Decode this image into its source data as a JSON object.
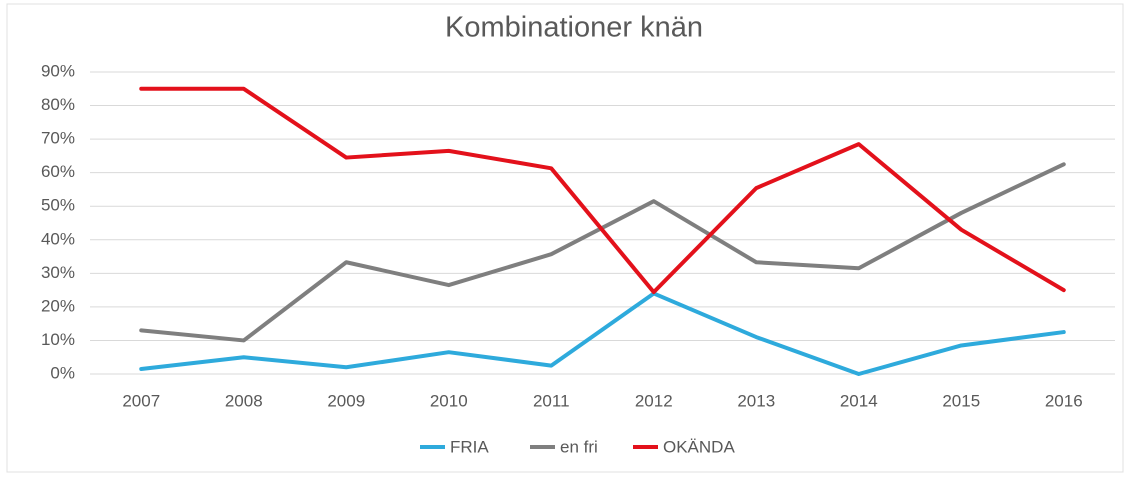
{
  "chart_data": {
    "type": "line",
    "title": "Kombinationer knän",
    "categories": [
      "2007",
      "2008",
      "2009",
      "2010",
      "2011",
      "2012",
      "2013",
      "2014",
      "2015",
      "2016"
    ],
    "series": [
      {
        "name": "FRIA",
        "color": "#2eaadc",
        "values": [
          1.5,
          5,
          2,
          6.5,
          2.5,
          24,
          11,
          0,
          8.5,
          12.5
        ]
      },
      {
        "name": "en fri",
        "color": "#7f7f7f",
        "values": [
          13,
          10,
          33.3,
          26.5,
          35.7,
          51.5,
          33.3,
          31.5,
          48,
          62.5
        ]
      },
      {
        "name": "OKÄNDA",
        "color": "#e3111b",
        "values": [
          85,
          85,
          64.5,
          66.5,
          61.3,
          24.4,
          55.4,
          68.5,
          43,
          25
        ]
      }
    ],
    "ylim": [
      0,
      90
    ],
    "yticks": [
      {
        "value": 0,
        "label": "0%"
      },
      {
        "value": 10,
        "label": "10%"
      },
      {
        "value": 20,
        "label": "20%"
      },
      {
        "value": 30,
        "label": "30%"
      },
      {
        "value": 40,
        "label": "40%"
      },
      {
        "value": 50,
        "label": "50%"
      },
      {
        "value": 60,
        "label": "60%"
      },
      {
        "value": 70,
        "label": "70%"
      },
      {
        "value": 80,
        "label": "80%"
      },
      {
        "value": 90,
        "label": "90%"
      }
    ],
    "grid": true,
    "legend": "bottom"
  }
}
